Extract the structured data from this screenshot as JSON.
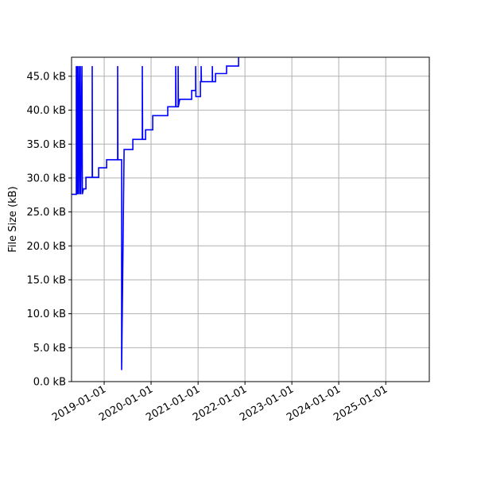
{
  "chart_data": {
    "type": "line",
    "title": "",
    "xlabel": "",
    "ylabel": "File Size (kB)",
    "xlim": [
      "2018-04-22",
      "2025-12-06"
    ],
    "ylim": [
      0,
      47.8
    ],
    "grid": true,
    "line_color": "#0000ff",
    "x_ticks": [
      "2019-01-01",
      "2020-01-01",
      "2021-01-01",
      "2022-01-01",
      "2023-01-01",
      "2024-01-01",
      "2025-01-01"
    ],
    "y_ticks": [
      0,
      5,
      10,
      15,
      20,
      25,
      30,
      35,
      40,
      45
    ],
    "y_tick_labels": [
      "0.0 kB",
      "5.0 kB",
      "10.0 kB",
      "15.0 kB",
      "20.0 kB",
      "25.0 kB",
      "30.0 kB",
      "35.0 kB",
      "40.0 kB",
      "45.0 kB"
    ],
    "series": [
      {
        "points": [
          [
            "2018-04-22",
            27.6
          ],
          [
            "2018-05-29",
            27.6
          ],
          [
            "2018-05-29",
            46.5
          ],
          [
            "2018-06-01",
            27.6
          ],
          [
            "2018-06-05",
            46.5
          ],
          [
            "2018-06-08",
            27.6
          ],
          [
            "2018-06-11",
            46.5
          ],
          [
            "2018-06-14",
            27.6
          ],
          [
            "2018-06-23",
            46.5
          ],
          [
            "2018-06-26",
            27.6
          ],
          [
            "2018-06-29",
            46.5
          ],
          [
            "2018-07-02",
            27.6
          ],
          [
            "2018-07-12",
            46.5
          ],
          [
            "2018-07-15",
            27.6
          ],
          [
            "2018-07-24",
            28.4
          ],
          [
            "2018-08-12",
            28.4
          ],
          [
            "2018-08-12",
            30.1
          ],
          [
            "2018-09-30",
            30.1
          ],
          [
            "2018-09-30",
            46.5
          ],
          [
            "2018-10-02",
            30.1
          ],
          [
            "2018-11-19",
            30.1
          ],
          [
            "2018-11-19",
            31.5
          ],
          [
            "2019-01-20",
            31.5
          ],
          [
            "2019-01-20",
            32.7
          ],
          [
            "2019-04-16",
            32.7
          ],
          [
            "2019-04-16",
            46.5
          ],
          [
            "2019-04-18",
            32.7
          ],
          [
            "2019-05-17",
            32.7
          ],
          [
            "2019-05-17",
            1.7
          ],
          [
            "2019-06-05",
            34.2
          ],
          [
            "2019-08-12",
            34.2
          ],
          [
            "2019-08-12",
            35.7
          ],
          [
            "2019-10-25",
            35.7
          ],
          [
            "2019-10-25",
            46.5
          ],
          [
            "2019-10-27",
            35.7
          ],
          [
            "2019-11-19",
            35.7
          ],
          [
            "2019-11-19",
            37.1
          ],
          [
            "2020-01-14",
            37.1
          ],
          [
            "2020-01-14",
            39.2
          ],
          [
            "2020-05-10",
            39.2
          ],
          [
            "2020-05-10",
            40.5
          ],
          [
            "2020-07-11",
            40.5
          ],
          [
            "2020-07-11",
            46.5
          ],
          [
            "2020-07-13",
            40.5
          ],
          [
            "2020-07-30",
            40.5
          ],
          [
            "2020-07-30",
            46.5
          ],
          [
            "2020-08-01",
            40.5
          ],
          [
            "2020-08-11",
            41.6
          ],
          [
            "2020-11-12",
            41.6
          ],
          [
            "2020-11-12",
            42.9
          ],
          [
            "2020-12-13",
            42.9
          ],
          [
            "2020-12-13",
            46.5
          ],
          [
            "2020-12-15",
            42.0
          ],
          [
            "2021-01-19",
            42.0
          ],
          [
            "2021-01-19",
            44.2
          ],
          [
            "2021-01-25",
            44.2
          ],
          [
            "2021-01-25",
            46.5
          ],
          [
            "2021-01-27",
            44.2
          ],
          [
            "2021-04-22",
            44.2
          ],
          [
            "2021-04-22",
            46.5
          ],
          [
            "2021-04-24",
            44.2
          ],
          [
            "2021-05-17",
            44.2
          ],
          [
            "2021-05-17",
            45.4
          ],
          [
            "2021-08-11",
            45.4
          ],
          [
            "2021-08-11",
            46.5
          ],
          [
            "2021-11-12",
            46.5
          ],
          [
            "2021-11-12",
            48.5
          ],
          [
            "2021-12-01",
            48.5
          ]
        ]
      }
    ]
  }
}
